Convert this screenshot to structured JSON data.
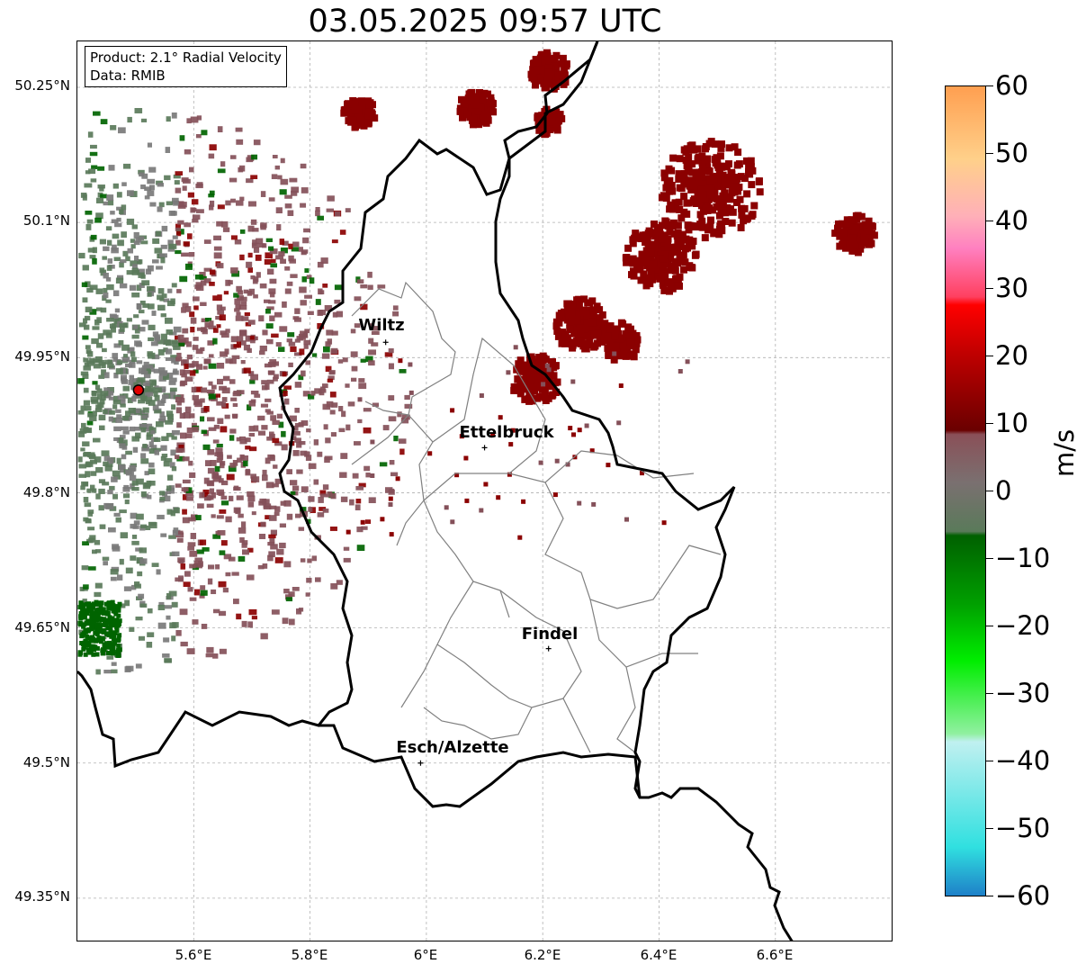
{
  "title": "03.05.2025 09:57 UTC",
  "info_box": {
    "product": "Product: 2.1° Radial Velocity",
    "data": "Data: RMIB"
  },
  "lat_labels": [
    "50.25°N",
    "50.1°N",
    "49.95°N",
    "49.8°N",
    "49.65°N",
    "49.5°N",
    "49.35°N"
  ],
  "lon_labels": [
    "5.6°E",
    "5.8°E",
    "6°E",
    "6.2°E",
    "6.4°E",
    "6.6°E"
  ],
  "cities": [
    {
      "name": "Wiltz",
      "lon": 5.93,
      "lat": 49.967
    },
    {
      "name": "Ettelbruck",
      "lon": 6.1,
      "lat": 49.85
    },
    {
      "name": "Findel",
      "lon": 6.21,
      "lat": 49.627
    },
    {
      "name": "Esch/Alzette",
      "lon": 5.99,
      "lat": 49.5
    }
  ],
  "radar_site": {
    "lon": 5.505,
    "lat": 49.914,
    "color": "#e00000"
  },
  "colorbar": {
    "unit": "m/s",
    "min": -60,
    "max": 60,
    "tick_labels": [
      "60",
      "50",
      "40",
      "30",
      "20",
      "10",
      "0",
      "−10",
      "−20",
      "−30",
      "−40",
      "−50",
      "−60"
    ]
  },
  "colors": {
    "approaching_strong": "#006400",
    "approaching": "#5a7a5a",
    "zero": "#7a7a7a",
    "receding": "#845059",
    "receding_strong": "#8b0000",
    "border": "#000000",
    "admin_line": "#808080"
  }
}
